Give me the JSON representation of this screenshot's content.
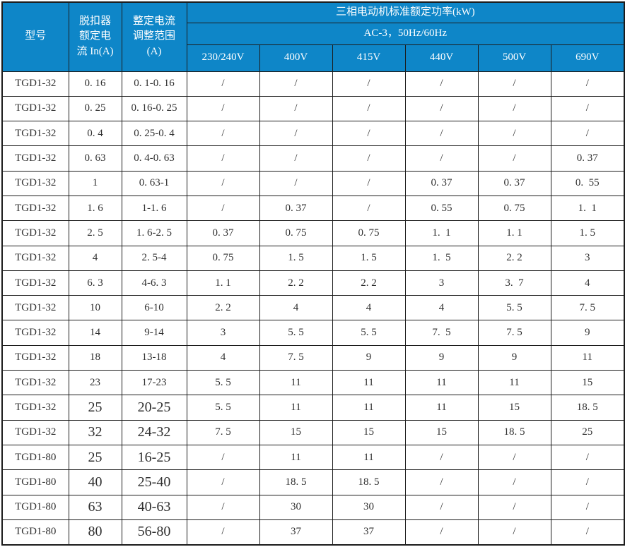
{
  "colors": {
    "header_bg": "#0e86c8",
    "header_text": "#ffffff",
    "body_text": "#303030",
    "border": "#1c1c1c",
    "page_bg": "#ffffff"
  },
  "table": {
    "header": {
      "col_model": "型号",
      "col_rated_current": "脱扣器\n额定电\n流 In(A)",
      "col_adjust_range": "整定电流\n调整范围\n(A)",
      "power_title": "三相电动机标准额定功率(kW)",
      "power_subtitle": "AC-3，50Hz/60Hz",
      "voltages": [
        "230/240V",
        "400V",
        "415V",
        "440V",
        "500V",
        "690V"
      ]
    },
    "rows": [
      [
        "TGD1-32",
        "0. 16",
        "0. 1-0. 16",
        "/",
        "/",
        "/",
        "/",
        "/",
        "/"
      ],
      [
        "TGD1-32",
        "0. 25",
        "0. 16-0. 25",
        "/",
        "/",
        "/",
        "/",
        "/",
        "/"
      ],
      [
        "TGD1-32",
        "0. 4",
        "0. 25-0. 4",
        "/",
        "/",
        "/",
        "/",
        "/",
        "/"
      ],
      [
        "TGD1-32",
        "0. 63",
        "0. 4-0. 63",
        "/",
        "/",
        "/",
        "/",
        "/",
        "0. 37"
      ],
      [
        "TGD1-32",
        "1",
        "0. 63-1",
        "/",
        "/",
        "/",
        "0. 37",
        "0. 37",
        "0.  55"
      ],
      [
        "TGD1-32",
        "1. 6",
        "1-1. 6",
        "/",
        "0. 37",
        "/",
        "0. 55",
        "0. 75",
        "1.  1"
      ],
      [
        "TGD1-32",
        "2. 5",
        "1. 6-2. 5",
        "0. 37",
        "0. 75",
        "0. 75",
        "1.  1",
        "1. 1",
        "1. 5"
      ],
      [
        "TGD1-32",
        "4",
        "2. 5-4",
        "0. 75",
        "1. 5",
        "1. 5",
        "1.  5",
        "2. 2",
        "3"
      ],
      [
        "TGD1-32",
        "6. 3",
        "4-6. 3",
        "1. 1",
        "2. 2",
        "2. 2",
        "3",
        "3.  7",
        "4"
      ],
      [
        "TGD1-32",
        "10",
        "6-10",
        "2. 2",
        "4",
        "4",
        "4",
        "5. 5",
        "7. 5"
      ],
      [
        "TGD1-32",
        "14",
        "9-14",
        "3",
        "5. 5",
        "5. 5",
        "7.  5",
        "7. 5",
        "9"
      ],
      [
        "TGD1-32",
        "18",
        "13-18",
        "4",
        "7. 5",
        "9",
        "9",
        "9",
        "11"
      ],
      [
        "TGD1-32",
        "23",
        "17-23",
        "5. 5",
        "11",
        "11",
        "11",
        "11",
        "15"
      ],
      [
        "TGD1-32",
        "25",
        "20-25",
        "5. 5",
        "11",
        "11",
        "11",
        "15",
        "18. 5"
      ],
      [
        "TGD1-32",
        "32",
        "24-32",
        "7. 5",
        "15",
        "15",
        "15",
        "18. 5",
        "25"
      ],
      [
        "TGD1-80",
        "25",
        "16-25",
        "/",
        "11",
        "11",
        "/",
        "/",
        "/"
      ],
      [
        "TGD1-80",
        "40",
        "25-40",
        "/",
        "18. 5",
        "18. 5",
        "/",
        "/",
        "/"
      ],
      [
        "TGD1-80",
        "63",
        "40-63",
        "/",
        "30",
        "30",
        "/",
        "/",
        "/"
      ],
      [
        "TGD1-80",
        "80",
        "56-80",
        "/",
        "37",
        "37",
        "/",
        "/",
        "/"
      ]
    ]
  }
}
